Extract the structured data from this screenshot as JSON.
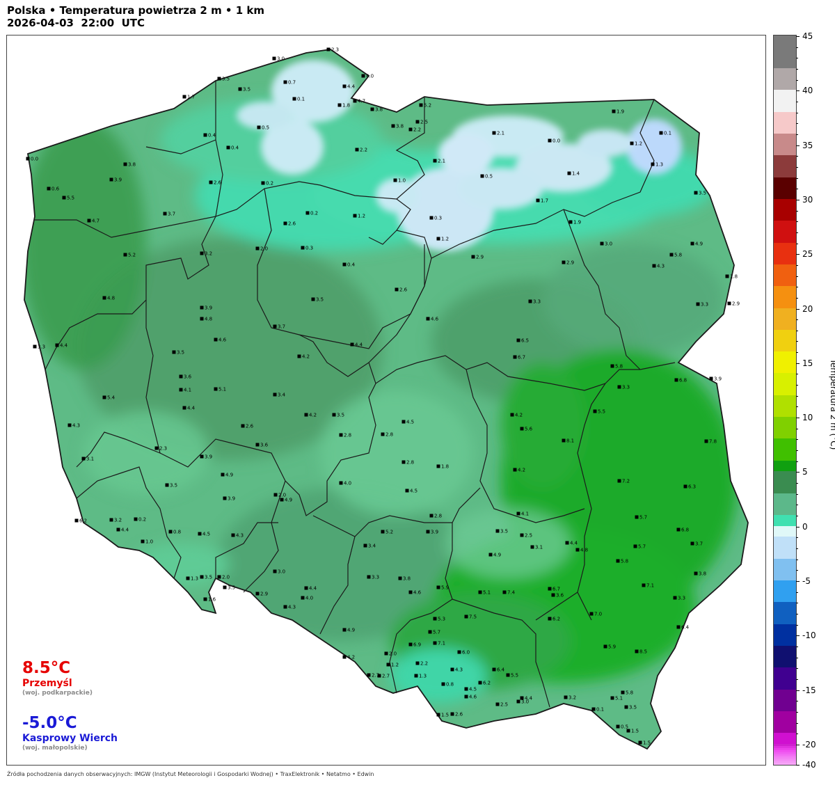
{
  "header": {
    "title_line1": "Polska • Temperatura powietrza 2 m • 1 km",
    "title_line2": "2026-04-03  22:00  UTC"
  },
  "extremes": {
    "max": {
      "value": "8.5°C",
      "place": "Przemyśl",
      "region": "(woj. podkarpackie)",
      "color": "#e60000"
    },
    "min": {
      "value": "-5.0°C",
      "place": "Kasprowy Wierch",
      "region": "(woj. małopolskie)",
      "color": "#1a1ad6"
    }
  },
  "colorbar": {
    "label": "Temperatura 2 m (°C)",
    "ticks": [
      "45",
      "40",
      "35",
      "30",
      "25",
      "20",
      "15",
      "10",
      "5",
      "0",
      "-5",
      "-10",
      "-15",
      "-20",
      "-40"
    ]
  },
  "footer": "Źródła pochodzenia danych obserwacyjnych: IMGW (Instytut Meteorologii i Gospodarki Wodnej)  •  TraxElektronik  •  Netatmo  •  Edwin",
  "colors": {
    "cold": "#cfe6f5",
    "zero": "#44ddb0",
    "mild": "#5cc48a",
    "warm_mid": "#4aa870",
    "warm": "#1fb02a"
  },
  "stations": [
    {
      "v": "2.3"
    },
    {
      "v": "3.0"
    },
    {
      "v": "4.0"
    },
    {
      "v": "4.4"
    },
    {
      "v": "0.7"
    },
    {
      "v": "3.5"
    },
    {
      "v": "3.5"
    },
    {
      "v": "1.7"
    },
    {
      "v": "0.1"
    },
    {
      "v": "4.7"
    },
    {
      "v": "1.8"
    },
    {
      "v": "3.8"
    },
    {
      "v": "5.2"
    },
    {
      "v": "1.9"
    },
    {
      "v": "2.1"
    },
    {
      "v": "0.5"
    },
    {
      "v": "0.4"
    },
    {
      "v": "2.5"
    },
    {
      "v": "2.2"
    },
    {
      "v": "3.8"
    },
    {
      "v": "0.1"
    },
    {
      "v": "0.0"
    },
    {
      "v": "1.2"
    },
    {
      "v": "2.2"
    },
    {
      "v": "0.4"
    },
    {
      "v": "3.8"
    },
    {
      "v": "2.1"
    },
    {
      "v": "1.3"
    },
    {
      "v": "0.5"
    },
    {
      "v": "1.4"
    },
    {
      "v": "1.0"
    },
    {
      "v": "3.9"
    },
    {
      "v": "0.2"
    },
    {
      "v": "2.6"
    },
    {
      "v": "0.6"
    },
    {
      "v": "5.5"
    },
    {
      "v": "1.7"
    },
    {
      "v": "3.7"
    },
    {
      "v": "1.2"
    },
    {
      "v": "0.3"
    },
    {
      "v": "1.9"
    },
    {
      "v": "4.7"
    },
    {
      "v": "2.6"
    },
    {
      "v": "0.2"
    },
    {
      "v": "0.0"
    },
    {
      "v": "3.5"
    },
    {
      "v": "1.2"
    },
    {
      "v": "3.0"
    },
    {
      "v": "4.9"
    },
    {
      "v": "2.9"
    },
    {
      "v": "5.2"
    },
    {
      "v": "2.0"
    },
    {
      "v": "0.3"
    },
    {
      "v": "3.2"
    },
    {
      "v": "2.9"
    },
    {
      "v": "3.9"
    },
    {
      "v": "4.3"
    },
    {
      "v": "5.8"
    },
    {
      "v": "0.4"
    },
    {
      "v": "1.8"
    },
    {
      "v": "3.3"
    },
    {
      "v": "4.8"
    },
    {
      "v": "2.6"
    },
    {
      "v": "3.3"
    },
    {
      "v": "3.3"
    },
    {
      "v": "2.9"
    },
    {
      "v": "4.4"
    },
    {
      "v": "3.5"
    },
    {
      "v": "4.6"
    },
    {
      "v": "4.8"
    },
    {
      "v": "3.7"
    },
    {
      "v": "4.6"
    },
    {
      "v": "6.5"
    },
    {
      "v": "4.4"
    },
    {
      "v": "3.5"
    },
    {
      "v": "3.6"
    },
    {
      "v": "4.2"
    },
    {
      "v": "6.7"
    },
    {
      "v": "5.8"
    },
    {
      "v": "3.3"
    },
    {
      "v": "4.1"
    },
    {
      "v": "5.1"
    },
    {
      "v": "6.8"
    },
    {
      "v": "3.9"
    },
    {
      "v": "5.4"
    },
    {
      "v": "4.4"
    },
    {
      "v": "3.4"
    },
    {
      "v": "3.5"
    },
    {
      "v": "5.5"
    },
    {
      "v": "2.8"
    },
    {
      "v": "4.3"
    },
    {
      "v": "2.6"
    },
    {
      "v": "4.2"
    },
    {
      "v": "4.5"
    },
    {
      "v": "4.2"
    },
    {
      "v": "5.6"
    },
    {
      "v": "2.8"
    },
    {
      "v": "7.8"
    },
    {
      "v": "2.3"
    },
    {
      "v": "3.9"
    },
    {
      "v": "3.6"
    },
    {
      "v": "8.1"
    },
    {
      "v": "2.8"
    },
    {
      "v": "1.8"
    },
    {
      "v": "4.9"
    },
    {
      "v": "4.2"
    },
    {
      "v": "3.1"
    },
    {
      "v": "7.2"
    },
    {
      "v": "4.0"
    },
    {
      "v": "3.5"
    },
    {
      "v": "4.5"
    },
    {
      "v": "6.3"
    },
    {
      "v": "3.9"
    },
    {
      "v": "2.0"
    },
    {
      "v": "4.9"
    },
    {
      "v": "2.8"
    },
    {
      "v": "6.2"
    },
    {
      "v": "3.2"
    },
    {
      "v": "0.2"
    },
    {
      "v": "4.1"
    },
    {
      "v": "5.7"
    },
    {
      "v": "4.4"
    },
    {
      "v": "0.8"
    },
    {
      "v": "4.5"
    },
    {
      "v": "5.2"
    },
    {
      "v": "3.5"
    },
    {
      "v": "2.5"
    },
    {
      "v": "4.4"
    },
    {
      "v": "6.8"
    },
    {
      "v": "1.0"
    },
    {
      "v": "4.3"
    },
    {
      "v": "3.9"
    },
    {
      "v": "3.1"
    },
    {
      "v": "5.7"
    },
    {
      "v": "3.4"
    },
    {
      "v": "3.7"
    },
    {
      "v": "4.9"
    },
    {
      "v": "4.8"
    },
    {
      "v": "5.8"
    },
    {
      "v": "3.8"
    },
    {
      "v": "3.5"
    },
    {
      "v": "2.0"
    },
    {
      "v": "3.0"
    },
    {
      "v": "3.3"
    },
    {
      "v": "3.8"
    },
    {
      "v": "5.9"
    },
    {
      "v": "5.1"
    },
    {
      "v": "6.7"
    },
    {
      "v": "7.1"
    },
    {
      "v": "1.3"
    },
    {
      "v": "3.5"
    },
    {
      "v": "4.4"
    },
    {
      "v": "4.0"
    },
    {
      "v": "4.6"
    },
    {
      "v": "7.4"
    },
    {
      "v": "3.6"
    },
    {
      "v": "3.3"
    },
    {
      "v": "1.6"
    },
    {
      "v": "2.9"
    },
    {
      "v": "4.3"
    },
    {
      "v": "5.3"
    },
    {
      "v": "7.5"
    },
    {
      "v": "6.2"
    },
    {
      "v": "7.0"
    },
    {
      "v": "6.4"
    },
    {
      "v": "4.9"
    },
    {
      "v": "5.7"
    },
    {
      "v": "7.1"
    },
    {
      "v": "6.0"
    },
    {
      "v": "5.9"
    },
    {
      "v": "4.2"
    },
    {
      "v": "2.7"
    },
    {
      "v": "2.0"
    },
    {
      "v": "6.9"
    },
    {
      "v": "2.2"
    },
    {
      "v": "4.3"
    },
    {
      "v": "6.4"
    },
    {
      "v": "8.5"
    },
    {
      "v": "2.7"
    },
    {
      "v": "1.2"
    },
    {
      "v": "1.3"
    },
    {
      "v": "0.8"
    },
    {
      "v": "6.2"
    },
    {
      "v": "5.5"
    },
    {
      "v": "4.4"
    },
    {
      "v": "4.5"
    },
    {
      "v": "4.6"
    },
    {
      "v": "3.2"
    },
    {
      "v": "5.8"
    },
    {
      "v": "3.5"
    },
    {
      "v": "2.5"
    },
    {
      "v": "1.5"
    },
    {
      "v": "0.1"
    },
    {
      "v": "3.0"
    },
    {
      "v": "5.1"
    },
    {
      "v": "0.5"
    },
    {
      "v": "1.5"
    },
    {
      "v": "1.5"
    },
    {
      "v": "2.6"
    }
  ]
}
